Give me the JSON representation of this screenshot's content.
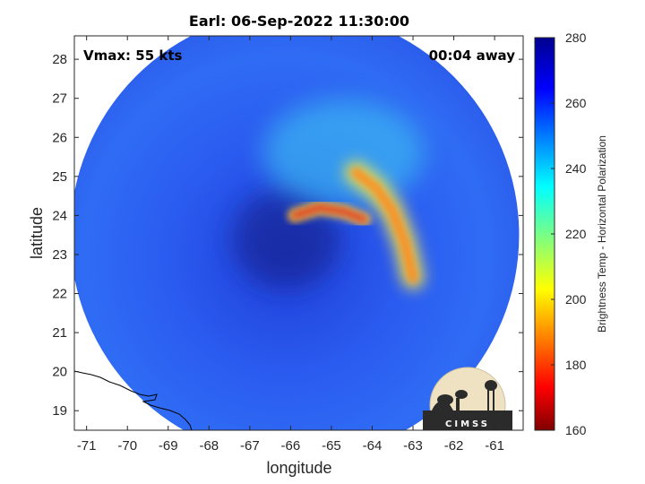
{
  "chart_data": {
    "type": "heatmap",
    "title": "Earl: 06-Sep-2022 11:30:00",
    "xlabel": "longitude",
    "ylabel": "latitude",
    "xlim": [
      -71.3,
      -60.3
    ],
    "ylim": [
      18.5,
      28.6
    ],
    "xticks": [
      -71,
      -70,
      -69,
      -68,
      -67,
      -66,
      -65,
      -64,
      -63,
      -62,
      -61
    ],
    "yticks": [
      19,
      20,
      21,
      22,
      23,
      24,
      25,
      26,
      27,
      28
    ],
    "annotations": {
      "left": "Vmax: 55 kts",
      "right": "00:04 away"
    },
    "colorbar": {
      "label": "Brightness Temp - Horizontal Polarization",
      "range": [
        160,
        280
      ],
      "ticks": [
        160,
        180,
        200,
        220,
        240,
        260,
        280
      ],
      "colormap": "jet"
    },
    "swath": {
      "center_lon": -65.9,
      "center_lat": 23.5,
      "radius_deg": 5.5
    },
    "features": [
      {
        "name": "cold-band-east",
        "temp_k": 190,
        "points": [
          [
            -64.4,
            25.1
          ],
          [
            -63.9,
            24.7
          ],
          [
            -63.5,
            24.1
          ],
          [
            -63.2,
            23.3
          ],
          [
            -63.0,
            22.4
          ]
        ]
      },
      {
        "name": "cold-core-west",
        "temp_k": 185,
        "points": [
          [
            -65.9,
            24.0
          ],
          [
            -65.3,
            24.2
          ],
          [
            -64.7,
            24.1
          ],
          [
            -64.2,
            23.9
          ]
        ]
      },
      {
        "name": "warm-eye",
        "temp_k": 262,
        "points": [
          [
            -66.1,
            23.4
          ]
        ]
      }
    ],
    "logo_text": "CIMSS"
  }
}
